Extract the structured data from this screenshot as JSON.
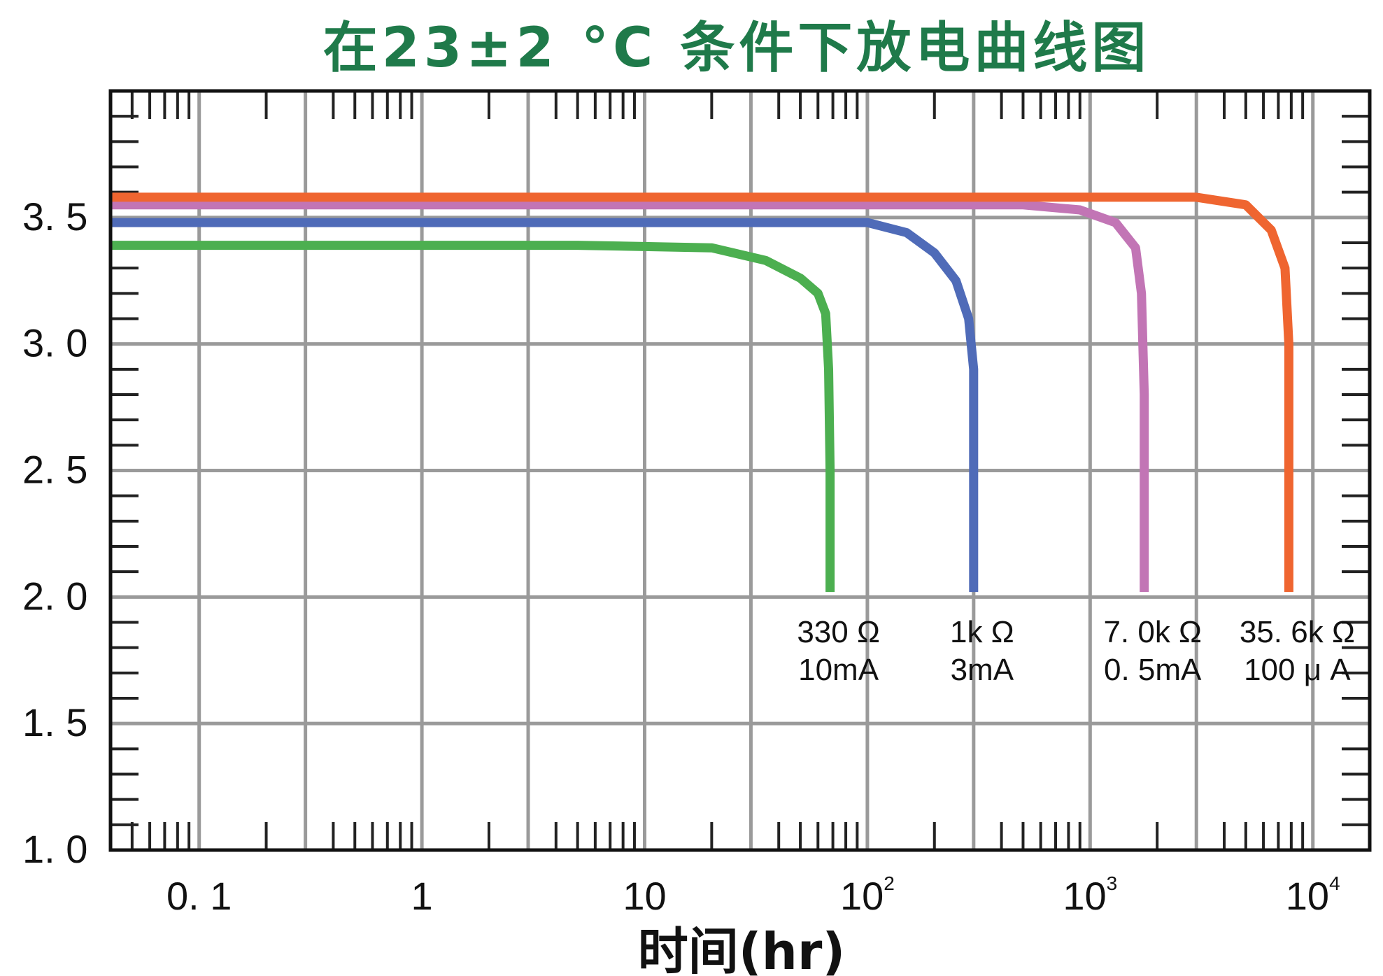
{
  "chart_data": {
    "type": "line",
    "title": "在23±2 °C 条件下放电曲线图",
    "xlabel": "时间(hr)",
    "ylabel": "",
    "x_scale": "log",
    "xlim": [
      0.04,
      18000
    ],
    "ylim": [
      1.0,
      4.0
    ],
    "grid": true,
    "legend": "inline labels near curve ends",
    "x_ticks": [
      {
        "value": 0.1,
        "label": "0. 1",
        "sup": ""
      },
      {
        "value": 1,
        "label": "1",
        "sup": ""
      },
      {
        "value": 10,
        "label": "10",
        "sup": ""
      },
      {
        "value": 100,
        "label": "10",
        "sup": "2"
      },
      {
        "value": 1000,
        "label": "10",
        "sup": "3"
      },
      {
        "value": 10000,
        "label": "10",
        "sup": "4"
      }
    ],
    "y_ticks": [
      {
        "value": 1.0,
        "label": "1. 0"
      },
      {
        "value": 1.5,
        "label": "1. 5"
      },
      {
        "value": 2.0,
        "label": "2. 0"
      },
      {
        "value": 2.5,
        "label": "2. 5"
      },
      {
        "value": 3.0,
        "label": "3. 0"
      },
      {
        "value": 3.5,
        "label": "3. 5"
      }
    ],
    "series": [
      {
        "color": "#4caf50",
        "label_lines": [
          "330 Ω",
          "10mA"
        ],
        "x": [
          0.04,
          1,
          5,
          20,
          35,
          50,
          60,
          65,
          67,
          68,
          68
        ],
        "y": [
          3.39,
          3.39,
          3.39,
          3.38,
          3.33,
          3.26,
          3.2,
          3.12,
          2.9,
          2.5,
          2.02
        ]
      },
      {
        "color": "#4f6bb8",
        "label_lines": [
          "1k Ω",
          "3mA"
        ],
        "x": [
          0.04,
          10,
          100,
          150,
          200,
          250,
          285,
          300,
          300
        ],
        "y": [
          3.48,
          3.48,
          3.48,
          3.44,
          3.36,
          3.25,
          3.1,
          2.9,
          2.02
        ]
      },
      {
        "color": "#c275b5",
        "label_lines": [
          "7. 0k Ω",
          "0. 5mA"
        ],
        "x": [
          0.04,
          10,
          500,
          900,
          1300,
          1600,
          1700,
          1750,
          1750
        ],
        "y": [
          3.55,
          3.55,
          3.55,
          3.53,
          3.48,
          3.38,
          3.2,
          2.8,
          2.02
        ]
      },
      {
        "color": "#ef6530",
        "label_lines": [
          "35. 6k Ω",
          "100 μ A"
        ],
        "x": [
          0.04,
          10,
          1000,
          3000,
          5000,
          6500,
          7500,
          7800,
          7800
        ],
        "y": [
          3.58,
          3.58,
          3.58,
          3.58,
          3.55,
          3.45,
          3.3,
          3.0,
          2.02
        ]
      }
    ]
  }
}
